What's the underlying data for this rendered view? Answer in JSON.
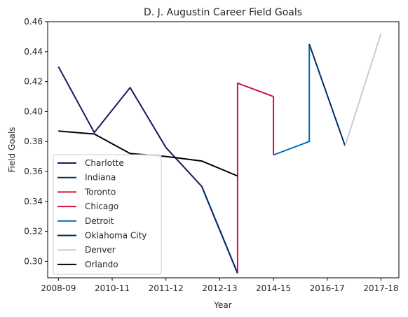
{
  "chart_data": {
    "type": "line",
    "title": "D. J. Augustin Career Field Goals",
    "xlabel": "Year",
    "ylabel": "Field Goals",
    "x_ticks": [
      "2008-09",
      "2010-11",
      "2011-12",
      "2012-13",
      "2014-15",
      "2016-17",
      "2017-18"
    ],
    "xlim": [
      -0.3,
      9.5
    ],
    "ylim": [
      0.289,
      0.46
    ],
    "y_ticks": [
      0.3,
      0.32,
      0.34,
      0.36,
      0.38,
      0.4,
      0.42,
      0.44,
      0.46
    ],
    "grid": false,
    "legend_position": "lower-left",
    "series": [
      {
        "name": "Charlotte",
        "color": "#21145f",
        "points": [
          [
            0,
            0.43
          ],
          [
            1,
            0.386
          ],
          [
            2,
            0.416
          ],
          [
            3,
            0.376
          ],
          [
            4,
            0.35
          ],
          [
            5,
            0.292
          ]
        ]
      },
      {
        "name": "Indiana",
        "color": "#002d62",
        "points": [
          [
            4,
            0.35
          ],
          [
            5,
            0.292
          ]
        ]
      },
      {
        "name": "Toronto",
        "color": "#ce1141",
        "points": [
          [
            5,
            0.292
          ],
          [
            5,
            0.419
          ],
          [
            6,
            0.41
          ]
        ]
      },
      {
        "name": "Chicago",
        "color": "#ce1141",
        "points": [
          [
            6,
            0.41
          ],
          [
            6,
            0.371
          ]
        ]
      },
      {
        "name": "Detroit",
        "color": "#006bb6",
        "points": [
          [
            6,
            0.371
          ],
          [
            7,
            0.38
          ],
          [
            7,
            0.445
          ]
        ]
      },
      {
        "name": "Oklahoma City",
        "color": "#002d62",
        "points": [
          [
            7,
            0.445
          ],
          [
            8,
            0.377
          ]
        ]
      },
      {
        "name": "Denver",
        "color": "#c4ced4",
        "points": [
          [
            8,
            0.377
          ],
          [
            9,
            0.452
          ]
        ]
      },
      {
        "name": "Orlando",
        "color": "#000000",
        "points": [
          [
            0,
            0.387
          ],
          [
            1,
            0.385
          ],
          [
            2,
            0.372
          ],
          [
            3,
            0.37
          ],
          [
            4,
            0.367
          ],
          [
            5,
            0.357
          ]
        ]
      }
    ]
  }
}
